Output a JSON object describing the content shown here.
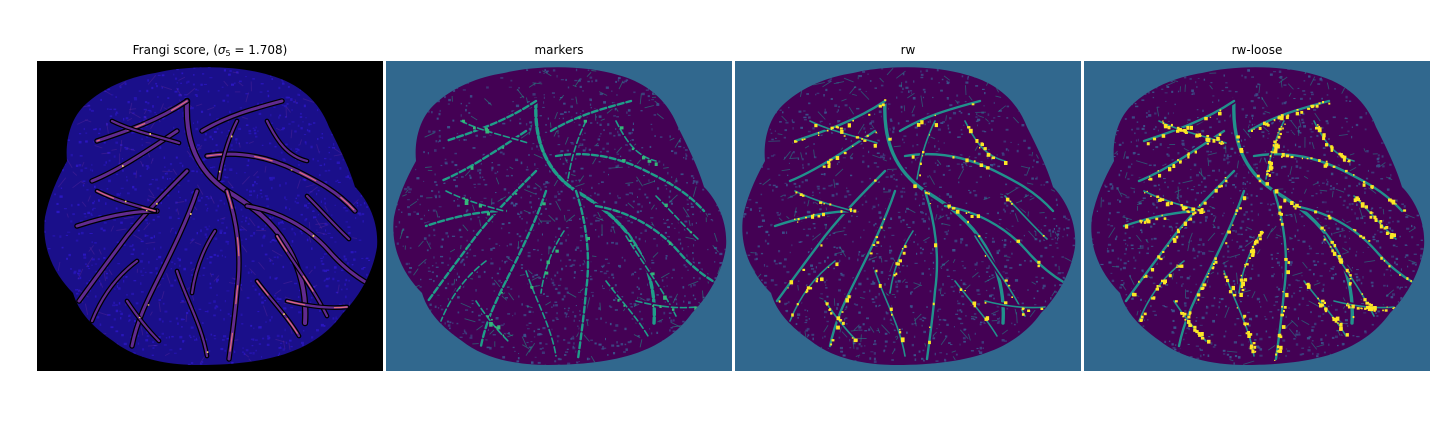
{
  "panels": [
    {
      "id": "frangi",
      "title_prefix": "Frangi score, (",
      "title_sigma": "σ",
      "title_sub": "5",
      "title_suffix": " = 1.708)",
      "colors": {
        "bg": "#000000",
        "tissue": "#1a0f8a",
        "vessel": "#6b2fa0",
        "vessel_hi": "#e06a7c",
        "bright": "#fbd36a",
        "noise": "#2b17c2"
      }
    },
    {
      "id": "markers",
      "title": "markers",
      "colors": {
        "bg": "#31688e",
        "tissue": "#440154",
        "vessel": "#1f9e89",
        "bright": "#35b779",
        "noise": "#3b528b"
      }
    },
    {
      "id": "rw",
      "title": "rw",
      "colors": {
        "bg": "#31688e",
        "tissue": "#440154",
        "vessel": "#21918c",
        "bright": "#fde725",
        "noise": "#3b528b"
      }
    },
    {
      "id": "rw-loose",
      "title": "rw-loose",
      "colors": {
        "bg": "#31688e",
        "tissue": "#440154",
        "vessel": "#21918c",
        "bright": "#fde725",
        "noise": "#3b528b"
      }
    }
  ]
}
